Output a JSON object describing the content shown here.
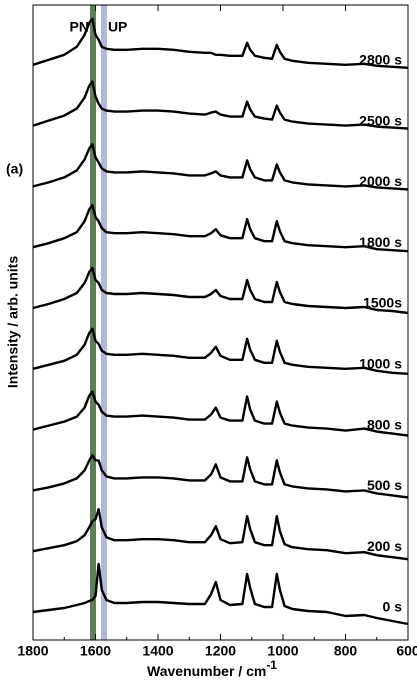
{
  "chart_data": {
    "type": "line",
    "panel_label": "(a)",
    "x_label": "Wavenumber / cm",
    "x_label_superscript": "-1",
    "y_label": "Intensity / arb. units",
    "xlim": [
      1800,
      600
    ],
    "xticks": [
      1800,
      1600,
      1400,
      1200,
      1000,
      800,
      600
    ],
    "color": "#000000",
    "bands": [
      {
        "label": "PN",
        "position": 1608,
        "color": "#5d7f5d"
      },
      {
        "label": "UP",
        "position": 1573,
        "color": "#b3b6d9"
      }
    ],
    "x": [
      1800,
      1750,
      1700,
      1660,
      1635,
      1620,
      1610,
      1600,
      1590,
      1580,
      1565,
      1540,
      1500,
      1450,
      1400,
      1350,
      1300,
      1250,
      1230,
      1215,
      1200,
      1170,
      1130,
      1115,
      1105,
      1090,
      1060,
      1035,
      1020,
      1010,
      995,
      970,
      920,
      860,
      800,
      740,
      700,
      650,
      600
    ],
    "series": [
      {
        "name": "0 s",
        "values": [
          0,
          2,
          4,
          7,
          9,
          11,
          12,
          16,
          48,
          22,
          12,
          9,
          9,
          10,
          10,
          9,
          8,
          8,
          18,
          30,
          12,
          7,
          8,
          38,
          24,
          8,
          5,
          5,
          38,
          22,
          6,
          3,
          1,
          0,
          -4,
          -3,
          -6,
          -9,
          -12
        ]
      },
      {
        "name": "200 s",
        "values": [
          0,
          3,
          6,
          10,
          16,
          24,
          30,
          32,
          42,
          24,
          14,
          11,
          11,
          12,
          12,
          11,
          9,
          9,
          16,
          25,
          12,
          8,
          9,
          35,
          22,
          9,
          6,
          6,
          35,
          20,
          7,
          4,
          2,
          1,
          -2,
          -1,
          -4,
          -6,
          -8
        ]
      },
      {
        "name": "500 s",
        "values": [
          0,
          3,
          7,
          12,
          20,
          30,
          35,
          30,
          30,
          20,
          14,
          12,
          12,
          13,
          13,
          12,
          10,
          10,
          16,
          26,
          13,
          9,
          9,
          33,
          21,
          9,
          6,
          6,
          30,
          18,
          6,
          4,
          2,
          1,
          -1,
          0,
          -3,
          -5,
          -7
        ]
      },
      {
        "name": "800 s",
        "values": [
          0,
          4,
          8,
          13,
          22,
          34,
          38,
          28,
          25,
          18,
          14,
          13,
          13,
          14,
          13,
          12,
          10,
          10,
          15,
          22,
          12,
          9,
          9,
          33,
          20,
          9,
          6,
          6,
          28,
          17,
          6,
          4,
          2,
          1,
          -1,
          1,
          -2,
          -4,
          -6
        ]
      },
      {
        "name": "1000 s",
        "values": [
          0,
          4,
          8,
          14,
          24,
          36,
          40,
          28,
          25,
          18,
          15,
          14,
          14,
          15,
          14,
          13,
          11,
          11,
          16,
          22,
          13,
          9,
          9,
          30,
          19,
          9,
          6,
          6,
          28,
          17,
          6,
          4,
          2,
          1,
          0,
          1,
          -2,
          -4,
          -5
        ]
      },
      {
        "name": "1500s",
        "values": [
          0,
          4,
          9,
          15,
          25,
          36,
          40,
          28,
          25,
          18,
          15,
          14,
          14,
          15,
          14,
          13,
          11,
          11,
          14,
          18,
          12,
          9,
          9,
          28,
          18,
          9,
          6,
          6,
          26,
          16,
          6,
          4,
          2,
          1,
          0,
          1,
          -2,
          -3,
          -5
        ]
      },
      {
        "name": "1800 s",
        "values": [
          0,
          4,
          9,
          15,
          26,
          38,
          42,
          30,
          26,
          19,
          15,
          14,
          14,
          15,
          14,
          13,
          11,
          11,
          14,
          18,
          12,
          9,
          9,
          28,
          18,
          9,
          6,
          6,
          26,
          16,
          6,
          4,
          2,
          1,
          0,
          1,
          -2,
          -3,
          -4
        ]
      },
      {
        "name": "2000 s",
        "values": [
          0,
          4,
          9,
          16,
          27,
          38,
          42,
          29,
          24,
          18,
          15,
          14,
          14,
          15,
          14,
          13,
          11,
          11,
          13,
          15,
          11,
          9,
          9,
          26,
          17,
          9,
          6,
          6,
          22,
          14,
          6,
          4,
          2,
          1,
          0,
          1,
          -1,
          -2,
          -3
        ]
      },
      {
        "name": "2500 s",
        "values": [
          0,
          5,
          10,
          17,
          28,
          40,
          44,
          29,
          22,
          17,
          15,
          14,
          14,
          15,
          15,
          14,
          12,
          11,
          13,
          14,
          11,
          9,
          9,
          24,
          16,
          9,
          7,
          6,
          20,
          13,
          6,
          4,
          2,
          1,
          0,
          1,
          -1,
          -2,
          -3
        ]
      },
      {
        "name": "2800 s",
        "values": [
          0,
          5,
          10,
          18,
          30,
          42,
          46,
          30,
          25,
          18,
          16,
          15,
          15,
          16,
          16,
          15,
          13,
          12,
          12,
          10,
          10,
          9,
          9,
          22,
          15,
          9,
          7,
          6,
          20,
          13,
          6,
          4,
          2,
          1,
          0,
          1,
          -1,
          -2,
          -3
        ]
      }
    ]
  }
}
